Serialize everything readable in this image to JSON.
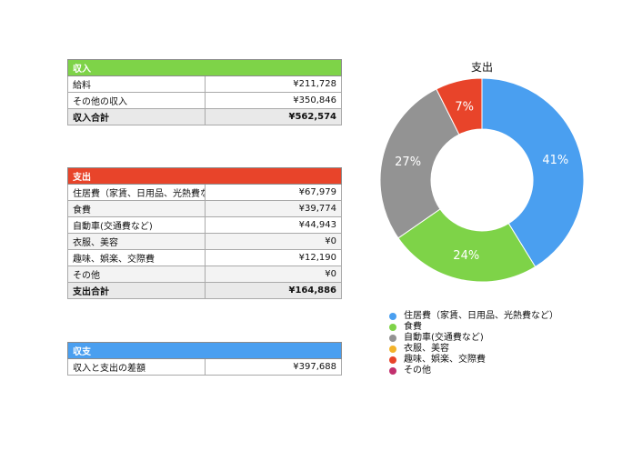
{
  "income": {
    "header": "収入",
    "header_color": "#7ed348",
    "rows": [
      {
        "label": "給料",
        "amount": "¥211,728"
      },
      {
        "label": "その他の収入",
        "amount": "¥350,846"
      }
    ],
    "total": {
      "label": "収入合計",
      "amount": "¥562,574"
    }
  },
  "expense": {
    "header": "支出",
    "header_color": "#e8442a",
    "rows": [
      {
        "label": "住居費（家賃、日用品、光熱費など）",
        "amount": "¥67,979"
      },
      {
        "label": "食費",
        "amount": "¥39,774"
      },
      {
        "label": "自動車(交通費など)",
        "amount": "¥44,943"
      },
      {
        "label": "衣服、美容",
        "amount": "¥0"
      },
      {
        "label": "趣味、娯楽、交際費",
        "amount": "¥12,190"
      },
      {
        "label": "その他",
        "amount": "¥0"
      }
    ],
    "total": {
      "label": "支出合計",
      "amount": "¥164,886"
    }
  },
  "balance": {
    "header": "収支",
    "header_color": "#4a9ff0",
    "rows": [
      {
        "label": "収入と支出の差額",
        "amount": "¥397,688"
      }
    ]
  },
  "chart_data": {
    "type": "pie",
    "variant": "donut",
    "title": "支出",
    "categories": [
      "住居費（家賃、日用品、光熱費など）",
      "食費",
      "自動車(交通費など)",
      "衣服、美容",
      "趣味、娯楽、交際費",
      "その他"
    ],
    "values": [
      67979,
      39774,
      44943,
      0,
      12190,
      0
    ],
    "data_labels": [
      "41%",
      "24%",
      "27%",
      "",
      "7%",
      ""
    ],
    "colors": [
      "#4a9ff0",
      "#7ed348",
      "#939393",
      "#f3b32a",
      "#e8442a",
      "#c2306e"
    ],
    "legend_position": "bottom"
  }
}
